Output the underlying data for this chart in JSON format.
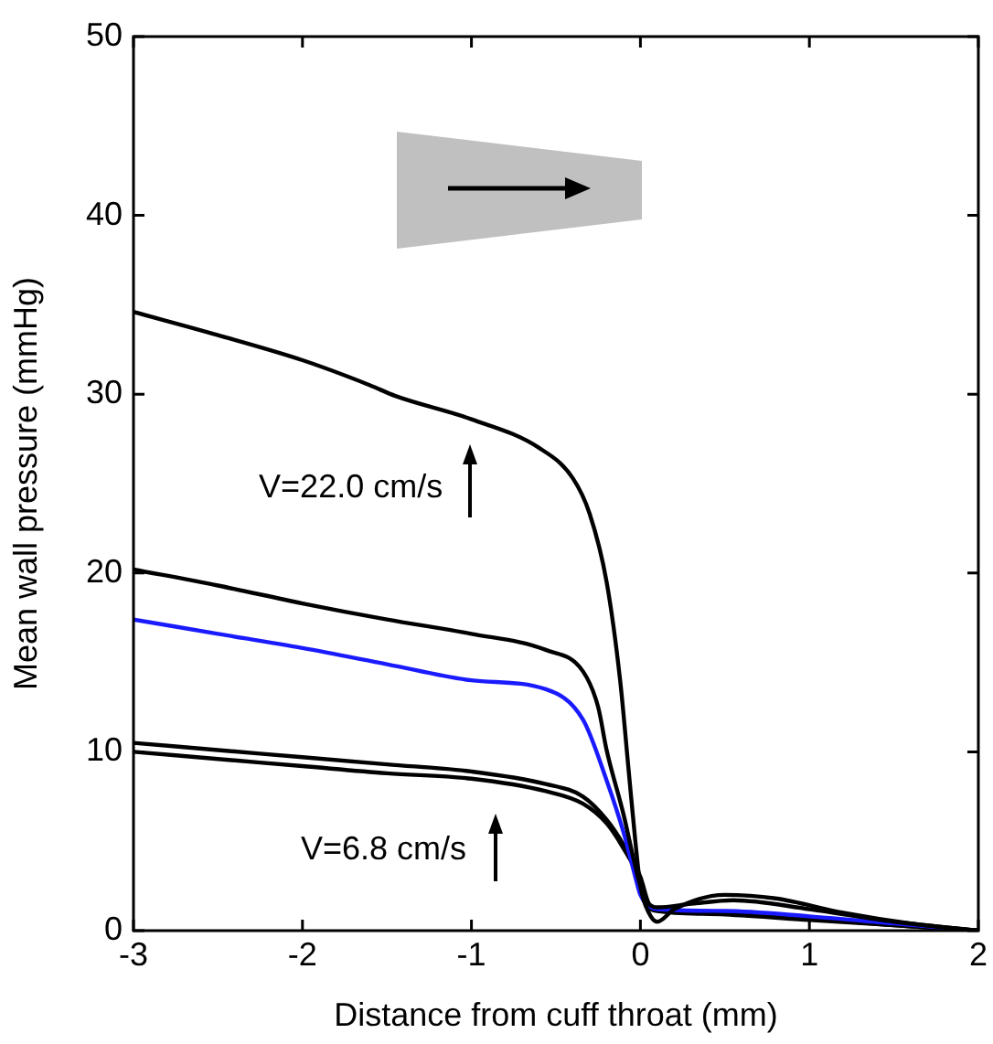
{
  "chart_data": {
    "type": "line",
    "xlabel": "Distance from cuff throat (mm)",
    "ylabel": "Mean wall pressure (mmHg)",
    "xlim": [
      -3,
      2
    ],
    "xticks": [
      -3,
      -2,
      -1,
      0,
      1,
      2
    ],
    "ylim": [
      0,
      50
    ],
    "yticks": [
      0,
      10,
      20,
      30,
      40,
      50
    ],
    "grid": false,
    "legend": false,
    "marker": "none",
    "line_style": "solid",
    "series": [
      {
        "color": "#000000",
        "x": [
          -3,
          -2.5,
          -2,
          -1.6,
          -1.45,
          -1,
          -0.6,
          -0.4,
          -0.3,
          -0.2,
          -0.12,
          -0.07,
          -0.03,
          0,
          0.05,
          0.1,
          0.2,
          0.5,
          0.8,
          1.2,
          1.6,
          2
        ],
        "values": [
          34.6,
          33.3,
          31.9,
          30.5,
          29.9,
          28.6,
          27.0,
          25.3,
          23.3,
          19.5,
          14.0,
          9.0,
          5.0,
          2.5,
          1.0,
          0.5,
          1.2,
          2.0,
          1.8,
          1.0,
          0.4,
          0
        ]
      },
      {
        "color": "#000000",
        "x": [
          -3,
          -2.5,
          -2,
          -1.5,
          -1,
          -0.56,
          -0.34,
          -0.25,
          -0.2,
          -0.1,
          -0.04,
          0,
          0.05,
          0.1,
          0.3,
          0.55,
          1,
          1.5,
          2
        ],
        "values": [
          20.2,
          19.3,
          18.3,
          17.4,
          16.6,
          15.7,
          14.5,
          12.5,
          10.1,
          6.5,
          4.0,
          2.5,
          1.5,
          1.3,
          1.5,
          1.7,
          1.2,
          0.5,
          0
        ]
      },
      {
        "color": "#1a1aff",
        "x": [
          -3,
          -2.5,
          -2,
          -1.5,
          -1,
          -0.56,
          -0.34,
          -0.2,
          -0.1,
          -0.03,
          0,
          0.1,
          0.5,
          1,
          1.5,
          2
        ],
        "values": [
          17.4,
          16.6,
          15.8,
          14.9,
          14.0,
          13.5,
          11.8,
          8.4,
          5.5,
          3.0,
          2.0,
          1.2,
          1.1,
          0.8,
          0.4,
          0
        ]
      },
      {
        "color": "#000000",
        "x": [
          -3,
          -2.5,
          -2,
          -1.5,
          -1,
          -0.56,
          -0.34,
          -0.2,
          -0.1,
          0,
          0.05,
          0.1,
          0.5,
          1,
          1.5,
          2
        ],
        "values": [
          10.5,
          10.1,
          9.7,
          9.3,
          8.9,
          8.2,
          7.5,
          6.2,
          4.8,
          3.0,
          1.5,
          1.2,
          1.0,
          0.7,
          0.3,
          0
        ]
      },
      {
        "color": "#000000",
        "x": [
          -3,
          -2.5,
          -2,
          -1.5,
          -1,
          -0.56,
          -0.34,
          -0.2,
          -0.1,
          0,
          0.05,
          0.1,
          0.5,
          1,
          1.5,
          2
        ],
        "values": [
          10.0,
          9.6,
          9.2,
          8.8,
          8.5,
          7.8,
          7.1,
          6.0,
          4.6,
          2.8,
          1.3,
          1.1,
          0.9,
          0.6,
          0.3,
          0
        ]
      }
    ],
    "annotations": [
      "V=22.0 cm/s",
      "V=6.8 cm/s"
    ]
  }
}
